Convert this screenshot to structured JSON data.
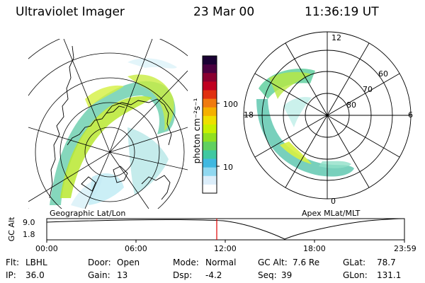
{
  "header": {
    "instrument": "Ultraviolet Imager",
    "date": "23 Mar 00",
    "time": "11:36:19 UT"
  },
  "colorbar": {
    "unit": "photon cm⁻²s⁻¹",
    "ticks": [
      "100",
      "10"
    ],
    "colors": [
      "#1a0033",
      "#4a0040",
      "#8a0030",
      "#c00020",
      "#e03010",
      "#f07a10",
      "#f5b000",
      "#eee000",
      "#c8f000",
      "#90e020",
      "#60d060",
      "#40c8a0",
      "#40b8e0",
      "#90d8f0",
      "#dceefa",
      "#ffffff"
    ]
  },
  "geographic_panel": {
    "label": "Geographic Lat/Lon"
  },
  "apex_panel": {
    "label": "Apex MLat/MLT",
    "mlt_labels": {
      "top": "12",
      "left": "18",
      "right": "6",
      "bottom": "0"
    },
    "lat_labels": [
      "60",
      "70",
      "80"
    ]
  },
  "altitude_plot": {
    "ylabel": "GC Alt",
    "y_ticks": [
      "9.0",
      "1.8"
    ],
    "x_ticks": [
      "00:00",
      "06:00",
      "12:00",
      "18:00",
      "23:59"
    ],
    "current_time_color": "#e00000"
  },
  "info": {
    "filter": {
      "label": "Flt:",
      "value": "LBHL"
    },
    "ip": {
      "label": "IP:",
      "value": "36.0"
    },
    "door": {
      "label": "Door:",
      "value": "Open"
    },
    "gain": {
      "label": "Gain:",
      "value": "13"
    },
    "mode": {
      "label": "Mode:",
      "value": "Normal"
    },
    "dsp": {
      "label": "Dsp:",
      "value": "-4.2"
    },
    "gc_alt": {
      "label": "GC Alt:",
      "value": "7.6 Re"
    },
    "seq": {
      "label": "Seq:",
      "value": "39"
    },
    "glat": {
      "label": "GLat:",
      "value": "78.7"
    },
    "glon": {
      "label": "GLon:",
      "value": "131.1"
    }
  }
}
